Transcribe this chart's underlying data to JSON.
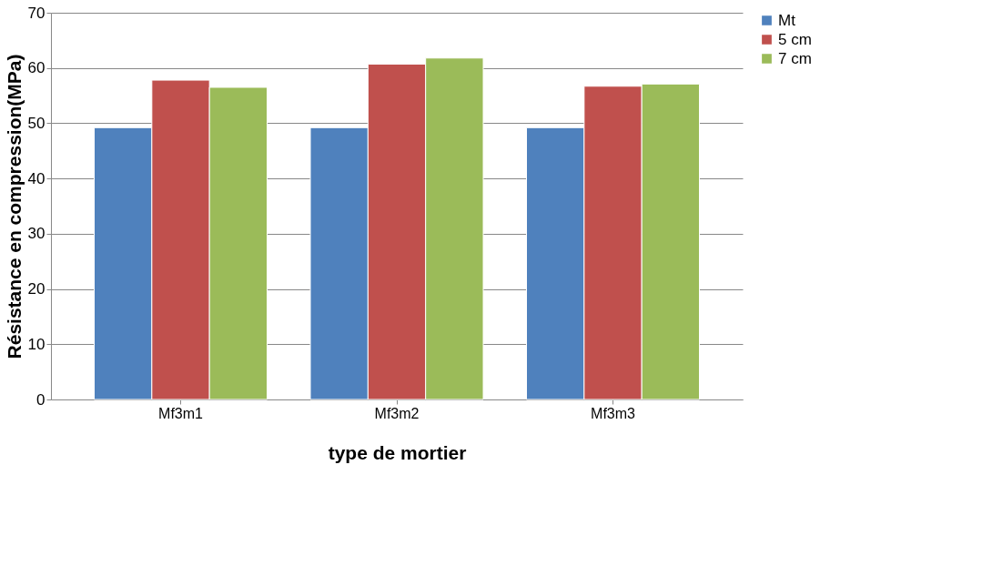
{
  "chart_data": {
    "type": "bar",
    "xlabel": "type de mortier",
    "ylabel": "Résistance en compression(MPa)",
    "categories": [
      "Mf3m1",
      "Mf3m2",
      "Mf3m3"
    ],
    "series": [
      {
        "name": "Mt",
        "color": "#4f81bd",
        "values": [
          49.2,
          49.2,
          49.2
        ]
      },
      {
        "name": "5 cm",
        "color": "#c0504d",
        "values": [
          57.8,
          60.7,
          56.7
        ]
      },
      {
        "name": "7 cm",
        "color": "#9bbb59",
        "values": [
          56.5,
          61.8,
          57.1
        ]
      }
    ],
    "ylim": [
      0,
      70
    ],
    "yticks": [
      0,
      10,
      20,
      30,
      40,
      50,
      60,
      70
    ],
    "grid": "y",
    "legend": "right"
  }
}
